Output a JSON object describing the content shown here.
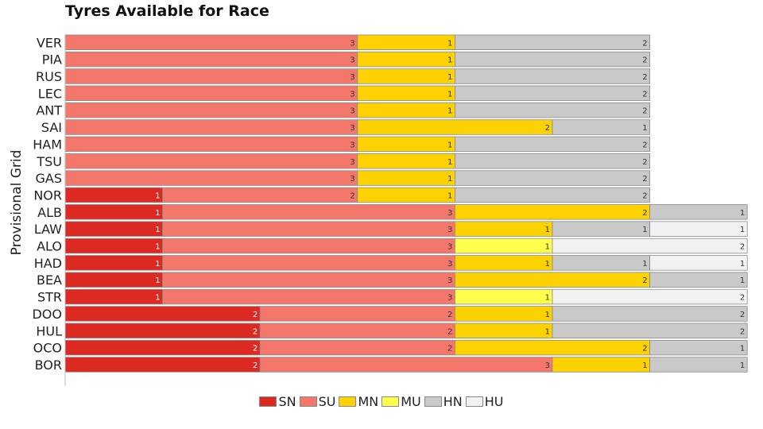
{
  "chart_data": {
    "type": "bar",
    "orientation": "horizontal",
    "stacked": true,
    "title": "Tyres Available for Race",
    "ylabel": "Provisional Grid",
    "xlabel": "",
    "grid": false,
    "legend_position": "bottom",
    "categories": [
      "VER",
      "PIA",
      "RUS",
      "LEC",
      "ANT",
      "SAI",
      "HAM",
      "TSU",
      "GAS",
      "NOR",
      "ALB",
      "LAW",
      "ALO",
      "HAD",
      "BEA",
      "STR",
      "DOO",
      "HUL",
      "OCO",
      "BOR"
    ],
    "series": [
      {
        "name": "SN",
        "color": "#dc2a22",
        "values": [
          0,
          0,
          0,
          0,
          0,
          0,
          0,
          0,
          0,
          1,
          1,
          1,
          1,
          1,
          1,
          1,
          2,
          2,
          2,
          2
        ]
      },
      {
        "name": "SU",
        "color": "#f4776b",
        "values": [
          3,
          3,
          3,
          3,
          3,
          3,
          3,
          3,
          3,
          2,
          3,
          3,
          3,
          3,
          3,
          3,
          2,
          2,
          2,
          3
        ]
      },
      {
        "name": "MN",
        "color": "#fed100",
        "values": [
          1,
          1,
          1,
          1,
          1,
          2,
          1,
          1,
          1,
          1,
          2,
          1,
          0,
          1,
          2,
          0,
          1,
          1,
          2,
          1
        ]
      },
      {
        "name": "MU",
        "color": "#ffff4d",
        "values": [
          0,
          0,
          0,
          0,
          0,
          0,
          0,
          0,
          0,
          0,
          0,
          0,
          1,
          0,
          0,
          1,
          0,
          0,
          0,
          0
        ]
      },
      {
        "name": "HN",
        "color": "#c9c9c9",
        "values": [
          2,
          2,
          2,
          2,
          2,
          1,
          2,
          2,
          2,
          2,
          1,
          1,
          0,
          1,
          1,
          0,
          2,
          2,
          1,
          1
        ]
      },
      {
        "name": "HU",
        "color": "#f2f2f2",
        "values": [
          0,
          0,
          0,
          0,
          0,
          0,
          0,
          0,
          0,
          0,
          0,
          1,
          2,
          1,
          0,
          2,
          0,
          0,
          0,
          0
        ]
      }
    ]
  }
}
